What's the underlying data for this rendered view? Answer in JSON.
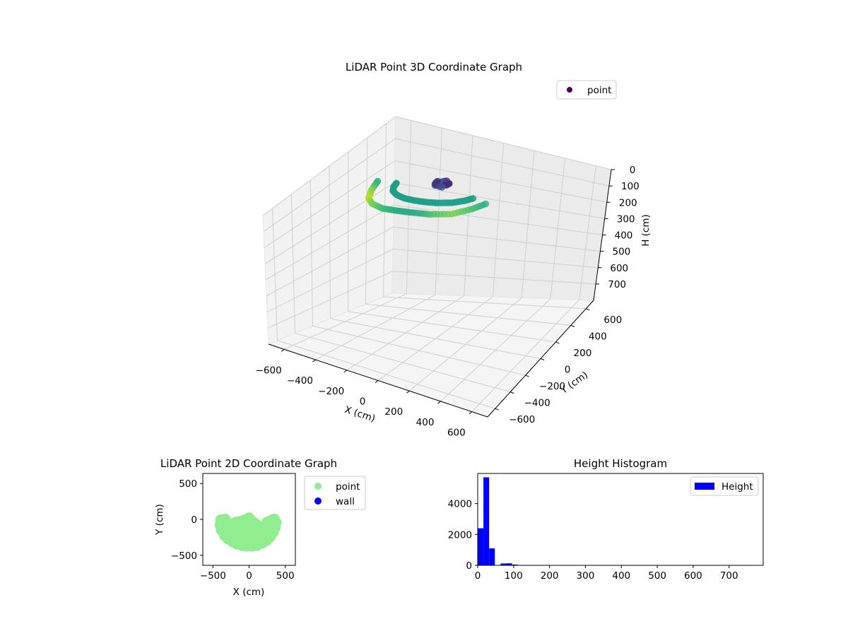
{
  "chart_data": [
    {
      "type": "scatter",
      "projection": "3d",
      "title": "LiDAR Point 3D Coordinate Graph",
      "xlabel": "X (cm)",
      "ylabel": "Y (cm)",
      "zlabel": "H (cm)",
      "xlim": [
        -700,
        700
      ],
      "ylim": [
        -700,
        700
      ],
      "zlim": [
        0,
        800
      ],
      "z_inverted": true,
      "xticks": [
        -600,
        -400,
        -200,
        0,
        200,
        400,
        600
      ],
      "yticks": [
        -600,
        -400,
        -200,
        0,
        200,
        400,
        600
      ],
      "zticks": [
        0,
        100,
        200,
        300,
        400,
        500,
        600,
        700
      ],
      "grid": true,
      "colormap": "viridis",
      "legend": {
        "placement": "upper-right",
        "entries": [
          "point"
        ]
      },
      "series": [
        {
          "name": "point",
          "color_by": "height",
          "shape": "u-shaped arc around origin",
          "sample_points": [
            {
              "x": -380,
              "y": -20,
              "h": 30
            },
            {
              "x": -360,
              "y": -120,
              "h": 40
            },
            {
              "x": -320,
              "y": -220,
              "h": 45
            },
            {
              "x": -250,
              "y": -300,
              "h": 40
            },
            {
              "x": -150,
              "y": -360,
              "h": 35
            },
            {
              "x": -50,
              "y": -380,
              "h": 30
            },
            {
              "x": 50,
              "y": -380,
              "h": 30
            },
            {
              "x": 150,
              "y": -360,
              "h": 35
            },
            {
              "x": 250,
              "y": -300,
              "h": 40
            },
            {
              "x": 320,
              "y": -200,
              "h": 35
            },
            {
              "x": 360,
              "y": -80,
              "h": 30
            },
            {
              "x": 0,
              "y": 30,
              "h": 15
            }
          ]
        }
      ]
    },
    {
      "type": "scatter",
      "title": "LiDAR Point 2D Coordinate Graph",
      "xlabel": "X (cm)",
      "ylabel": "Y (cm)",
      "xlim": [
        -640,
        640
      ],
      "ylim": [
        -640,
        640
      ],
      "xticks": [
        -500,
        0,
        500
      ],
      "yticks": [
        -500,
        0,
        500
      ],
      "legend": {
        "placement": "outside-right",
        "entries": [
          "point",
          "wall"
        ]
      },
      "series": [
        {
          "name": "point",
          "color": "#90ee90",
          "points": [
            [
              -390,
              -10
            ],
            [
              -400,
              -80
            ],
            [
              -380,
              -150
            ],
            [
              -340,
              -220
            ],
            [
              -290,
              -270
            ],
            [
              -230,
              -310
            ],
            [
              -170,
              -340
            ],
            [
              -100,
              -360
            ],
            [
              -30,
              -370
            ],
            [
              40,
              -370
            ],
            [
              110,
              -360
            ],
            [
              180,
              -330
            ],
            [
              240,
              -290
            ],
            [
              290,
              -240
            ],
            [
              330,
              -180
            ],
            [
              360,
              -110
            ],
            [
              370,
              -40
            ],
            [
              350,
              0
            ],
            [
              300,
              -20
            ],
            [
              250,
              -40
            ],
            [
              -330,
              -40
            ],
            [
              -280,
              -60
            ],
            [
              -230,
              -70
            ],
            [
              -180,
              -40
            ],
            [
              -120,
              -30
            ],
            [
              -60,
              -10
            ],
            [
              0,
              20
            ],
            [
              20,
              -20
            ],
            [
              60,
              -40
            ],
            [
              100,
              -70
            ],
            [
              -150,
              -180
            ],
            [
              -60,
              -200
            ],
            [
              30,
              -210
            ],
            [
              120,
              -190
            ],
            [
              200,
              -150
            ],
            [
              -250,
              -150
            ],
            [
              260,
              -120
            ],
            [
              -300,
              -100
            ],
            [
              -200,
              -250
            ],
            [
              80,
              -300
            ],
            [
              -20,
              -300
            ],
            [
              160,
              -260
            ],
            [
              -100,
              -280
            ],
            [
              0,
              -130
            ],
            [
              -80,
              -100
            ],
            [
              70,
              -120
            ],
            [
              140,
              -100
            ],
            [
              -220,
              -120
            ],
            [
              -330,
              0
            ],
            [
              320,
              -10
            ]
          ]
        },
        {
          "name": "wall",
          "color": "#0000ff",
          "points": []
        }
      ]
    },
    {
      "type": "bar",
      "subtype": "histogram",
      "title": "Height Histogram",
      "xlabel": "",
      "ylabel": "",
      "xlim": [
        0,
        795
      ],
      "ylim": [
        0,
        5950
      ],
      "xticks": [
        0,
        100,
        200,
        300,
        400,
        500,
        600,
        700
      ],
      "yticks": [
        0,
        2000,
        4000
      ],
      "legend": {
        "placement": "upper-right",
        "entries": [
          "Height"
        ]
      },
      "series": [
        {
          "name": "Height",
          "color": "#0000ff",
          "bin_width": 15.9,
          "bin_start": 0,
          "counts": [
            2400,
            5700,
            1100,
            20,
            120,
            130,
            50,
            10,
            5,
            3,
            2,
            2,
            1,
            1,
            1,
            1,
            1,
            1,
            1,
            1,
            1,
            1,
            1,
            1,
            1,
            1,
            1,
            1,
            1,
            1,
            1,
            1,
            1,
            1,
            1,
            1,
            1,
            1,
            1,
            1,
            1,
            1,
            1,
            1,
            1,
            1,
            1,
            1,
            1,
            1
          ]
        }
      ]
    }
  ]
}
